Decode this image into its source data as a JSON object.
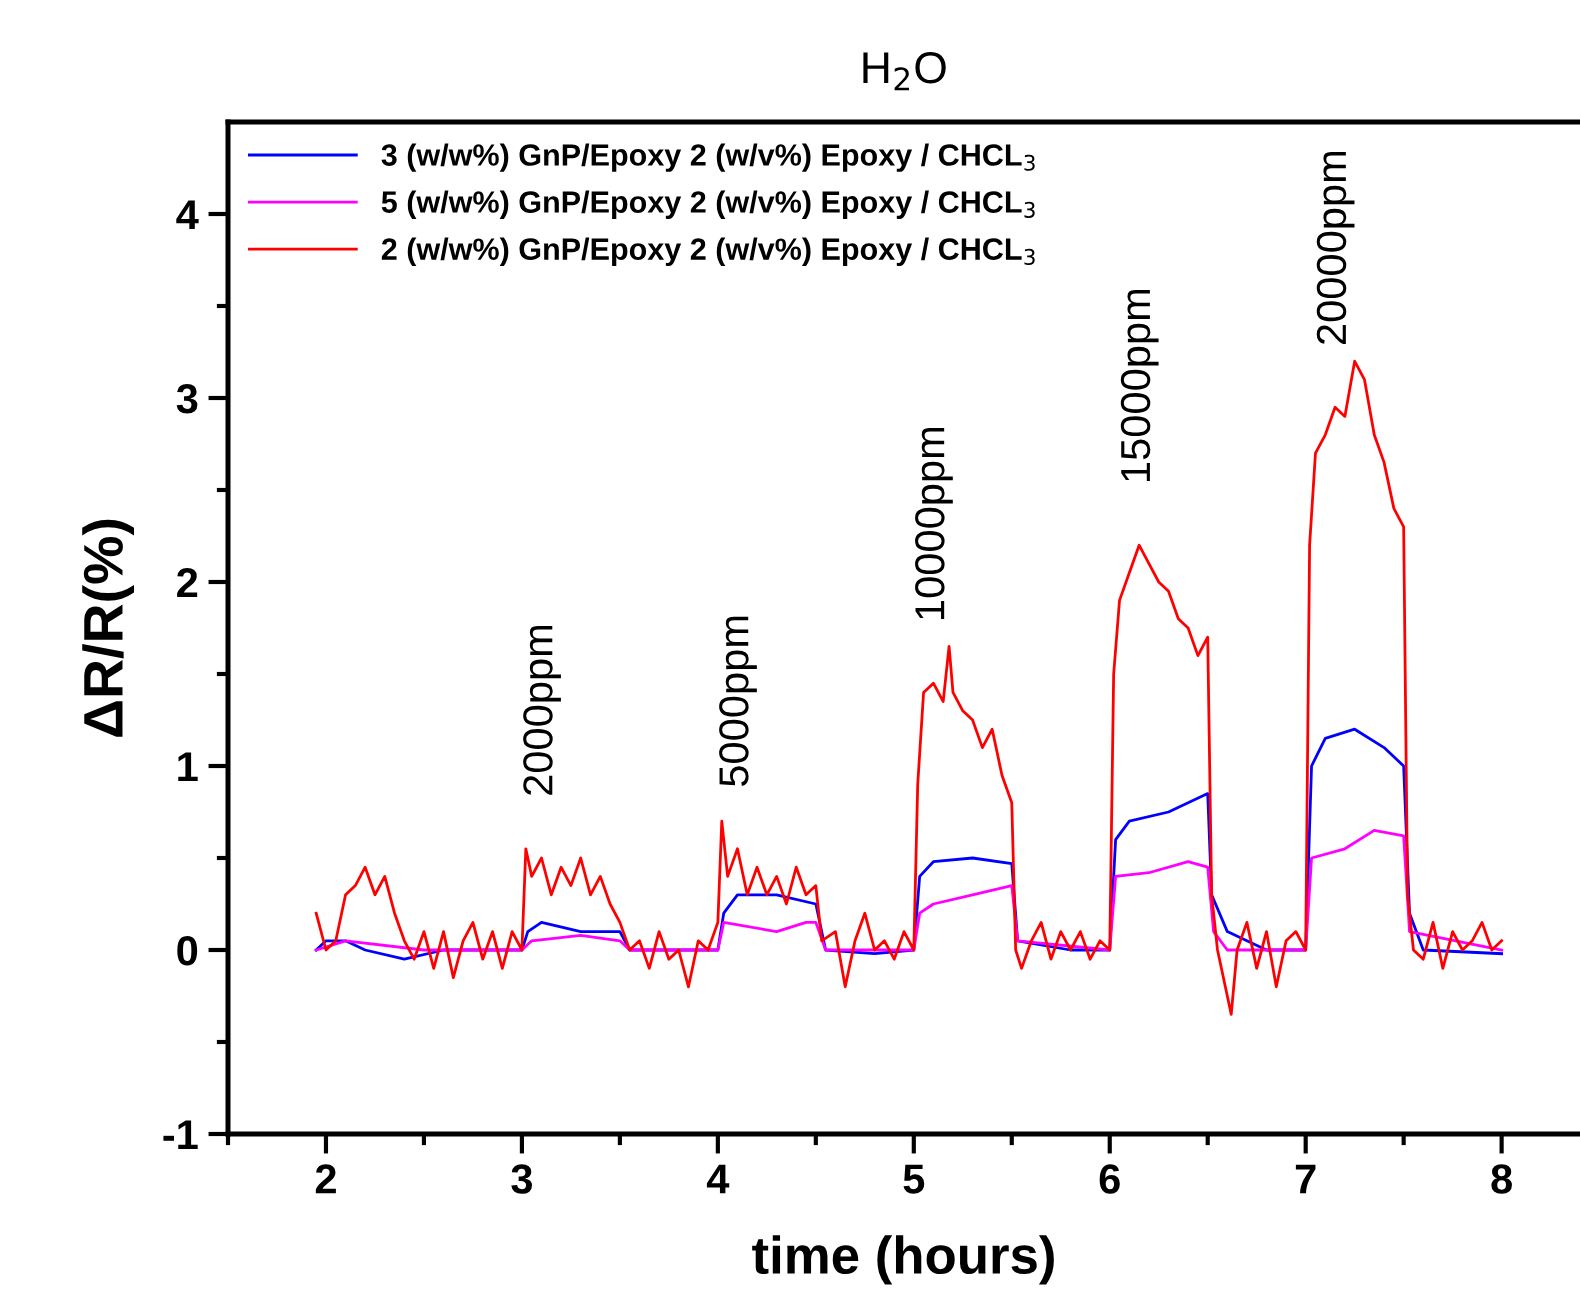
{
  "chart_data": {
    "type": "line",
    "title": "H$_{2}$O",
    "xlabel": "time (hours)",
    "ylabel": "ΔR/R(%)",
    "xlim": [
      1.5,
      8.4
    ],
    "ylim": [
      -1,
      4.5
    ],
    "xticks": [
      {
        "value": 1.5,
        "label": null
      },
      2,
      {
        "value": 2.5,
        "label": null
      },
      3,
      {
        "value": 3.5,
        "label": null
      },
      4,
      {
        "value": 4.5,
        "label": null
      },
      5,
      {
        "value": 5.5,
        "label": null
      },
      6,
      {
        "value": 6.5,
        "label": null
      },
      7,
      {
        "value": 7.5,
        "label": null
      },
      8
    ],
    "yticks": [
      -1,
      {
        "value": -0.5,
        "label": null
      },
      0,
      {
        "value": 0.5,
        "label": null
      },
      1,
      {
        "value": 1.5,
        "label": null
      },
      2,
      {
        "value": 2.5,
        "label": null
      },
      3,
      {
        "value": 3.5,
        "label": null
      },
      4
    ],
    "legend": "top left",
    "grid": false,
    "series": [
      {
        "name": "3 (w/w%) GnP/Epoxy 2 (w/v%) Epoxy / CHCL$_{3}$",
        "color": "#0000ff",
        "x": [
          1.95,
          2.0,
          2.1,
          2.2,
          2.4,
          2.6,
          2.8,
          3.0,
          3.03,
          3.1,
          3.3,
          3.5,
          3.55,
          3.8,
          4.0,
          4.03,
          4.1,
          4.3,
          4.5,
          4.55,
          4.8,
          5.0,
          5.03,
          5.1,
          5.3,
          5.5,
          5.53,
          5.8,
          6.0,
          6.03,
          6.1,
          6.3,
          6.5,
          6.52,
          6.6,
          6.8,
          7.0,
          7.03,
          7.1,
          7.25,
          7.4,
          7.5,
          7.53,
          7.6,
          8.0
        ],
        "values": [
          0.0,
          0.05,
          0.05,
          0.0,
          -0.05,
          0.0,
          0.0,
          0.0,
          0.1,
          0.15,
          0.1,
          0.1,
          0.0,
          0.0,
          0.0,
          0.2,
          0.3,
          0.3,
          0.25,
          0.0,
          -0.02,
          0.0,
          0.4,
          0.48,
          0.5,
          0.47,
          0.05,
          0.0,
          0.0,
          0.6,
          0.7,
          0.75,
          0.85,
          0.3,
          0.1,
          0.0,
          0.0,
          1.0,
          1.15,
          1.2,
          1.1,
          1.0,
          0.2,
          0.0,
          -0.02
        ]
      },
      {
        "name": "5 (w/w%) GnP/Epoxy 2 (w/v%) Epoxy / CHCL$_{3}$",
        "color": "#ff00ff",
        "x": [
          1.95,
          2.1,
          2.5,
          3.0,
          3.05,
          3.3,
          3.5,
          3.55,
          4.0,
          4.03,
          4.3,
          4.45,
          4.5,
          4.55,
          5.0,
          5.03,
          5.1,
          5.3,
          5.5,
          5.53,
          6.0,
          6.03,
          6.2,
          6.4,
          6.5,
          6.53,
          6.6,
          7.0,
          7.03,
          7.2,
          7.35,
          7.5,
          7.53,
          8.0
        ],
        "values": [
          0.0,
          0.05,
          0.0,
          0.0,
          0.05,
          0.08,
          0.05,
          0.0,
          0.0,
          0.15,
          0.1,
          0.15,
          0.15,
          0.0,
          0.0,
          0.2,
          0.25,
          0.3,
          0.35,
          0.05,
          0.0,
          0.4,
          0.42,
          0.48,
          0.45,
          0.1,
          0.0,
          0.0,
          0.5,
          0.55,
          0.65,
          0.62,
          0.1,
          0.0
        ]
      },
      {
        "name": "2 (w/w%) GnP/Epoxy 2 (w/v%) Epoxy / CHCL$_{3}$",
        "color": "#ff0000",
        "x": [
          1.95,
          2.0,
          2.05,
          2.1,
          2.15,
          2.2,
          2.25,
          2.3,
          2.35,
          2.4,
          2.45,
          2.5,
          2.55,
          2.6,
          2.65,
          2.7,
          2.75,
          2.8,
          2.85,
          2.9,
          2.95,
          3.0,
          3.02,
          3.05,
          3.1,
          3.15,
          3.2,
          3.25,
          3.3,
          3.35,
          3.4,
          3.45,
          3.5,
          3.55,
          3.6,
          3.65,
          3.7,
          3.75,
          3.8,
          3.85,
          3.9,
          3.95,
          4.0,
          4.02,
          4.05,
          4.1,
          4.15,
          4.2,
          4.25,
          4.3,
          4.35,
          4.4,
          4.45,
          4.5,
          4.53,
          4.6,
          4.65,
          4.7,
          4.75,
          4.8,
          4.85,
          4.9,
          4.95,
          5.0,
          5.02,
          5.05,
          5.1,
          5.15,
          5.18,
          5.2,
          5.25,
          5.3,
          5.35,
          5.4,
          5.45,
          5.5,
          5.52,
          5.55,
          5.6,
          5.65,
          5.7,
          5.75,
          5.8,
          5.85,
          5.9,
          5.95,
          6.0,
          6.02,
          6.05,
          6.1,
          6.15,
          6.2,
          6.25,
          6.3,
          6.35,
          6.4,
          6.45,
          6.5,
          6.52,
          6.55,
          6.6,
          6.62,
          6.65,
          6.7,
          6.75,
          6.8,
          6.85,
          6.9,
          6.95,
          7.0,
          7.02,
          7.05,
          7.1,
          7.15,
          7.2,
          7.25,
          7.3,
          7.35,
          7.4,
          7.45,
          7.5,
          7.52,
          7.55,
          7.6,
          7.65,
          7.7,
          7.75,
          7.8,
          7.85,
          7.9,
          7.95,
          8.0
        ],
        "values": [
          0.2,
          0.0,
          0.05,
          0.3,
          0.35,
          0.45,
          0.3,
          0.4,
          0.2,
          0.05,
          -0.05,
          0.1,
          -0.1,
          0.1,
          -0.15,
          0.05,
          0.15,
          -0.05,
          0.1,
          -0.1,
          0.1,
          0.0,
          0.55,
          0.4,
          0.5,
          0.3,
          0.45,
          0.35,
          0.5,
          0.3,
          0.4,
          0.25,
          0.15,
          0.0,
          0.05,
          -0.1,
          0.1,
          -0.05,
          0.0,
          -0.2,
          0.05,
          0.0,
          0.15,
          0.7,
          0.4,
          0.55,
          0.3,
          0.45,
          0.3,
          0.4,
          0.25,
          0.45,
          0.3,
          0.35,
          0.05,
          0.1,
          -0.2,
          0.05,
          0.2,
          0.0,
          0.05,
          -0.05,
          0.1,
          0.0,
          0.9,
          1.4,
          1.45,
          1.35,
          1.65,
          1.4,
          1.3,
          1.25,
          1.1,
          1.2,
          0.95,
          0.8,
          0.0,
          -0.1,
          0.05,
          0.15,
          -0.05,
          0.1,
          0.0,
          0.1,
          -0.05,
          0.05,
          0.0,
          1.5,
          1.9,
          2.05,
          2.2,
          2.1,
          2.0,
          1.95,
          1.8,
          1.75,
          1.6,
          1.7,
          0.3,
          0.0,
          -0.25,
          -0.35,
          0.0,
          0.15,
          -0.1,
          0.1,
          -0.2,
          0.05,
          0.1,
          0.0,
          2.2,
          2.7,
          2.8,
          2.95,
          2.9,
          3.2,
          3.1,
          2.8,
          2.65,
          2.4,
          2.3,
          0.3,
          0.0,
          -0.05,
          0.15,
          -0.1,
          0.1,
          0.0,
          0.05,
          0.15,
          0.0,
          0.05
        ]
      }
    ],
    "annotations": [
      {
        "text": "2000ppm",
        "x": 3.1,
        "y": 0.5
      },
      {
        "text": "5000ppm",
        "x": 4.1,
        "y": 0.55
      },
      {
        "text": "10000ppm",
        "x": 5.1,
        "y": 1.45
      },
      {
        "text": "15000ppm",
        "x": 6.15,
        "y": 2.2
      },
      {
        "text": "20000ppm",
        "x": 7.15,
        "y": 2.95
      }
    ]
  }
}
